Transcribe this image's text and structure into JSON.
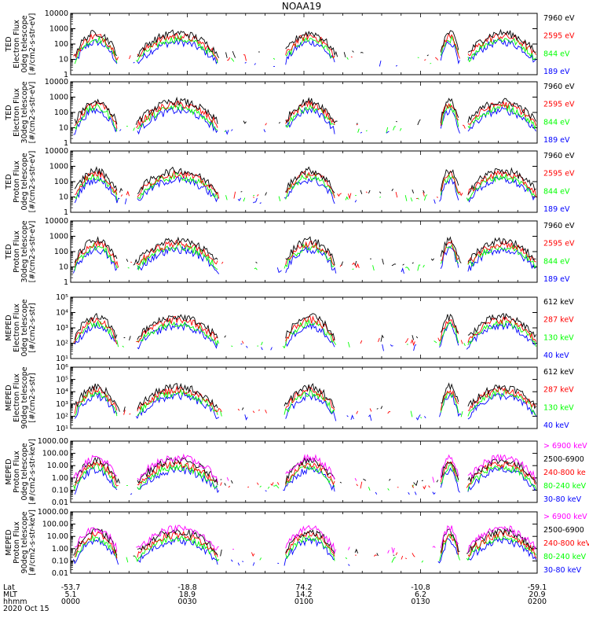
{
  "title": "NOAA19",
  "colors": {
    "black": "#000000",
    "red": "#ff0000",
    "green": "#00ff00",
    "blue": "#0000ff",
    "magenta": "#ff00ff"
  },
  "chart_data": {
    "type": "line",
    "title": "NOAA19",
    "date_label": "2020 Oct 15",
    "footer": {
      "row_labels": [
        "Lat",
        "MLT",
        "hhmm"
      ],
      "columns": [
        {
          "t": 0,
          "lat": "-53.7",
          "mlt": "5.1",
          "hhmm": "0000"
        },
        {
          "t": 30,
          "lat": "-18.8",
          "mlt": "18.9",
          "hhmm": "0030"
        },
        {
          "t": 60,
          "lat": "74.2",
          "mlt": "14.2",
          "hhmm": "0100"
        },
        {
          "t": 90,
          "lat": "-10.8",
          "mlt": "6.2",
          "hhmm": "0130"
        },
        {
          "t": 120,
          "lat": "-59.1",
          "mlt": "20.9",
          "hhmm": "0200"
        }
      ]
    },
    "panels": [
      {
        "ylabel": [
          "TED",
          "Electron Flux",
          "0deg telescope",
          "[#/cm2-s-str-eV]"
        ],
        "ylim": [
          1,
          10000
        ],
        "scale": "log",
        "ticks": [
          {
            "v": 1,
            "label": "1"
          },
          {
            "v": 10,
            "label": "10"
          },
          {
            "v": 100,
            "label": "100"
          },
          {
            "v": 1000,
            "label": "1000"
          },
          {
            "v": 10000,
            "label": "10000"
          }
        ],
        "series": [
          {
            "name": "7960 eV",
            "color": "#000000"
          },
          {
            "name": "2595 eV",
            "color": "#ff0000"
          },
          {
            "name": "844 eV",
            "color": "#00ff00"
          },
          {
            "name": "189 eV",
            "color": "#0000ff"
          }
        ]
      },
      {
        "ylabel": [
          "TED",
          "Electron Flux",
          "30deg telescope",
          "[#/cm2-s-str-eV]"
        ],
        "ylim": [
          1,
          10000
        ],
        "scale": "log",
        "ticks": [
          {
            "v": 1,
            "label": "1"
          },
          {
            "v": 10,
            "label": "10"
          },
          {
            "v": 100,
            "label": "100"
          },
          {
            "v": 1000,
            "label": "1000"
          },
          {
            "v": 10000,
            "label": "10000"
          }
        ],
        "series": [
          {
            "name": "7960 eV",
            "color": "#000000"
          },
          {
            "name": "2595 eV",
            "color": "#ff0000"
          },
          {
            "name": "844 eV",
            "color": "#00ff00"
          },
          {
            "name": "189 eV",
            "color": "#0000ff"
          }
        ]
      },
      {
        "ylabel": [
          "TED",
          "Proton Flux",
          "0deg telescope",
          "[#/cm2-s-str-eV]"
        ],
        "ylim": [
          1,
          10000
        ],
        "scale": "log",
        "ticks": [
          {
            "v": 1,
            "label": "1"
          },
          {
            "v": 10,
            "label": "10"
          },
          {
            "v": 100,
            "label": "100"
          },
          {
            "v": 1000,
            "label": "1000"
          },
          {
            "v": 10000,
            "label": "10000"
          }
        ],
        "series": [
          {
            "name": "7960 eV",
            "color": "#000000"
          },
          {
            "name": "2595 eV",
            "color": "#ff0000"
          },
          {
            "name": "844 eV",
            "color": "#00ff00"
          },
          {
            "name": "189 eV",
            "color": "#0000ff"
          }
        ]
      },
      {
        "ylabel": [
          "TED",
          "Proton Flux",
          "30deg telescope",
          "[#/cm2-s-str-eV]"
        ],
        "ylim": [
          1,
          10000
        ],
        "scale": "log",
        "ticks": [
          {
            "v": 1,
            "label": "1"
          },
          {
            "v": 10,
            "label": "10"
          },
          {
            "v": 100,
            "label": "100"
          },
          {
            "v": 1000,
            "label": "1000"
          },
          {
            "v": 10000,
            "label": "10000"
          }
        ],
        "series": [
          {
            "name": "7960 eV",
            "color": "#000000"
          },
          {
            "name": "2595 eV",
            "color": "#ff0000"
          },
          {
            "name": "844 eV",
            "color": "#00ff00"
          },
          {
            "name": "189 eV",
            "color": "#0000ff"
          }
        ]
      },
      {
        "ylabel": [
          "MEPED",
          "Electron Flux",
          "0deg telescope",
          "[#/cm2-s-str]"
        ],
        "ylim": [
          10,
          100000
        ],
        "scale": "log",
        "ticks": [
          {
            "v": 10,
            "label": "10¹"
          },
          {
            "v": 100,
            "label": "10²"
          },
          {
            "v": 1000,
            "label": "10³"
          },
          {
            "v": 10000,
            "label": "10⁴"
          },
          {
            "v": 100000,
            "label": "10⁵"
          }
        ],
        "series": [
          {
            "name": "612 keV",
            "color": "#000000"
          },
          {
            "name": "287 keV",
            "color": "#ff0000"
          },
          {
            "name": "130 keV",
            "color": "#00ff00"
          },
          {
            "name": "40 keV",
            "color": "#0000ff"
          }
        ]
      },
      {
        "ylabel": [
          "MEPED",
          "Electron Flux",
          "90deg telescope",
          "[#/cm2-s-str]"
        ],
        "ylim": [
          10,
          1000000
        ],
        "scale": "log",
        "ticks": [
          {
            "v": 10,
            "label": "10¹"
          },
          {
            "v": 100,
            "label": "10²"
          },
          {
            "v": 1000,
            "label": "10³"
          },
          {
            "v": 10000,
            "label": "10⁴"
          },
          {
            "v": 100000,
            "label": "10⁵"
          },
          {
            "v": 1000000,
            "label": "10⁶"
          }
        ],
        "series": [
          {
            "name": "612 keV",
            "color": "#000000"
          },
          {
            "name": "287 keV",
            "color": "#ff0000"
          },
          {
            "name": "130 keV",
            "color": "#00ff00"
          },
          {
            "name": "40 keV",
            "color": "#0000ff"
          }
        ]
      },
      {
        "ylabel": [
          "MEPED",
          "Proton Flux",
          "0deg telescope",
          "[#/cm2-s-str-keV]"
        ],
        "ylim": [
          0.01,
          1000
        ],
        "scale": "log",
        "ticks": [
          {
            "v": 0.01,
            "label": "0.01"
          },
          {
            "v": 0.1,
            "label": "0.10"
          },
          {
            "v": 1,
            "label": "1.00"
          },
          {
            "v": 10,
            "label": "10.00"
          },
          {
            "v": 100,
            "label": "100.00"
          },
          {
            "v": 1000,
            "label": "1000.00"
          }
        ],
        "series": [
          {
            "name": "> 6900 keV",
            "color": "#ff00ff"
          },
          {
            "name": "2500-6900",
            "color": "#000000"
          },
          {
            "name": "240-800 ke",
            "color": "#ff0000"
          },
          {
            "name": "80-240 keV",
            "color": "#00ff00"
          },
          {
            "name": "30-80 keV",
            "color": "#0000ff"
          }
        ]
      },
      {
        "ylabel": [
          "MEPED",
          "Proton Flux",
          "90deg telescope",
          "[#/cm2-s-str-keV]"
        ],
        "ylim": [
          0.01,
          1000
        ],
        "scale": "log",
        "ticks": [
          {
            "v": 0.01,
            "label": "0.01"
          },
          {
            "v": 0.1,
            "label": "0.10"
          },
          {
            "v": 1,
            "label": "1.00"
          },
          {
            "v": 10,
            "label": "10.00"
          },
          {
            "v": 100,
            "label": "100.00"
          },
          {
            "v": 1000,
            "label": "1000.00"
          }
        ],
        "series": [
          {
            "name": "> 6900 keV",
            "color": "#ff00ff"
          },
          {
            "name": "2500-6900",
            "color": "#000000"
          },
          {
            "name": "240-800 keV",
            "color": "#ff0000"
          },
          {
            "name": "80-240 keV",
            "color": "#00ff00"
          },
          {
            "name": "30-80 keV",
            "color": "#0000ff"
          }
        ]
      }
    ]
  }
}
